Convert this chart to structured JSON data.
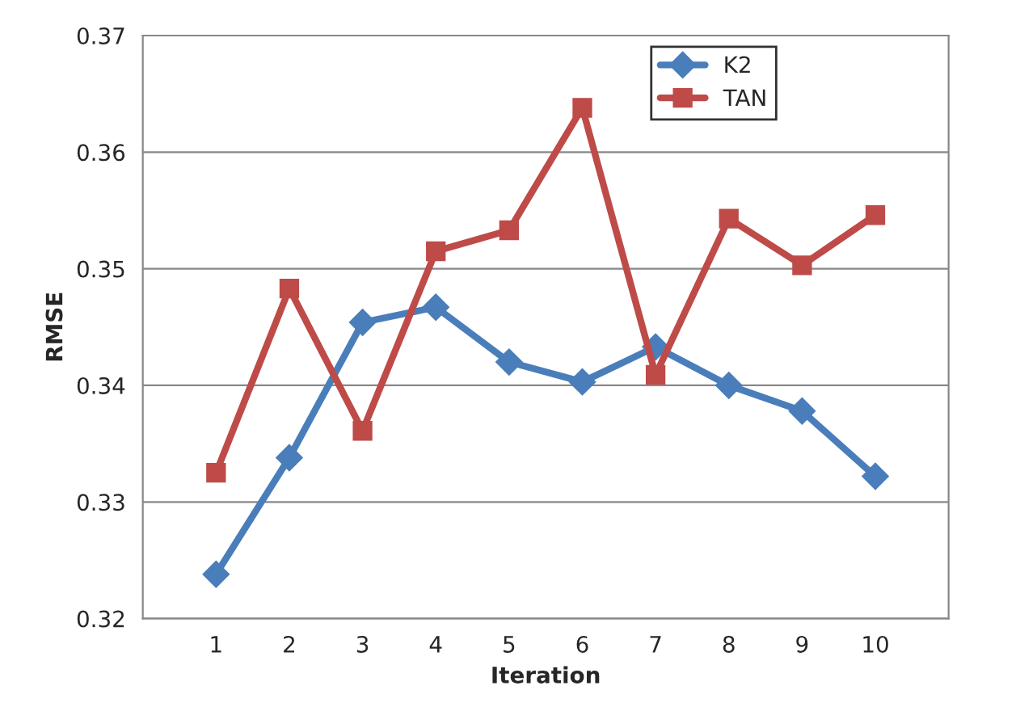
{
  "chart_data": {
    "type": "line",
    "xlabel": "Iteration",
    "ylabel": "RMSE",
    "categories": [
      "1",
      "2",
      "3",
      "4",
      "5",
      "6",
      "7",
      "8",
      "9",
      "10"
    ],
    "series": [
      {
        "name": "K2",
        "color": "#4a7ebb",
        "marker": "diamond",
        "values": [
          0.3238,
          0.3338,
          0.3454,
          0.3467,
          0.342,
          0.3403,
          0.3433,
          0.34,
          0.3378,
          0.3322
        ]
      },
      {
        "name": "TAN",
        "color": "#be4b48",
        "marker": "square",
        "values": [
          0.3325,
          0.3483,
          0.3361,
          0.3515,
          0.3533,
          0.3638,
          0.3409,
          0.3543,
          0.3503,
          0.3546
        ]
      }
    ],
    "ylim": [
      0.32,
      0.37
    ],
    "yticks": [
      0.32,
      0.33,
      0.34,
      0.35,
      0.36,
      0.37
    ],
    "grid": "y",
    "legend": "top right",
    "line_style": "solid"
  }
}
